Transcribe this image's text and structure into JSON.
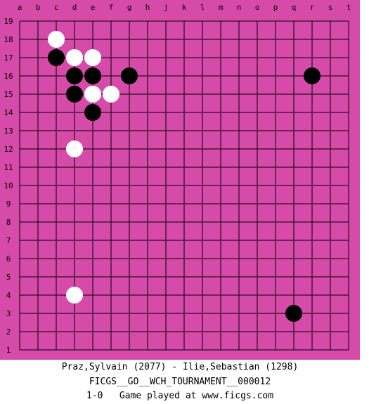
{
  "board": {
    "size": 19,
    "board_color": "#d64aa9",
    "line_color": "#000000",
    "columns": [
      "a",
      "b",
      "c",
      "d",
      "e",
      "f",
      "g",
      "h",
      "j",
      "k",
      "l",
      "m",
      "n",
      "o",
      "p",
      "q",
      "r",
      "s",
      "t"
    ],
    "rows": [
      "19",
      "18",
      "17",
      "16",
      "15",
      "14",
      "13",
      "12",
      "11",
      "10",
      "9",
      "8",
      "7",
      "6",
      "5",
      "4",
      "3",
      "2",
      "1"
    ],
    "stones": [
      {
        "color": "white",
        "point": "c18"
      },
      {
        "color": "black",
        "point": "c17"
      },
      {
        "color": "white",
        "point": "d17"
      },
      {
        "color": "white",
        "point": "e17"
      },
      {
        "color": "black",
        "point": "d16"
      },
      {
        "color": "black",
        "point": "e16"
      },
      {
        "color": "black",
        "point": "g16"
      },
      {
        "color": "black",
        "point": "r16"
      },
      {
        "color": "black",
        "point": "d15"
      },
      {
        "color": "white",
        "point": "e15"
      },
      {
        "color": "white",
        "point": "f15"
      },
      {
        "color": "black",
        "point": "e14"
      },
      {
        "color": "white",
        "point": "d12"
      },
      {
        "color": "white",
        "point": "d4"
      },
      {
        "color": "black",
        "point": "q3"
      }
    ]
  },
  "footer": {
    "players": "Praz,Sylvain (2077) - Ilie,Sebastian (1298)",
    "event": "FICGS__GO__WCH_TOURNAMENT__000012",
    "result_line": "1-0   Game played at www.ficgs.com"
  }
}
